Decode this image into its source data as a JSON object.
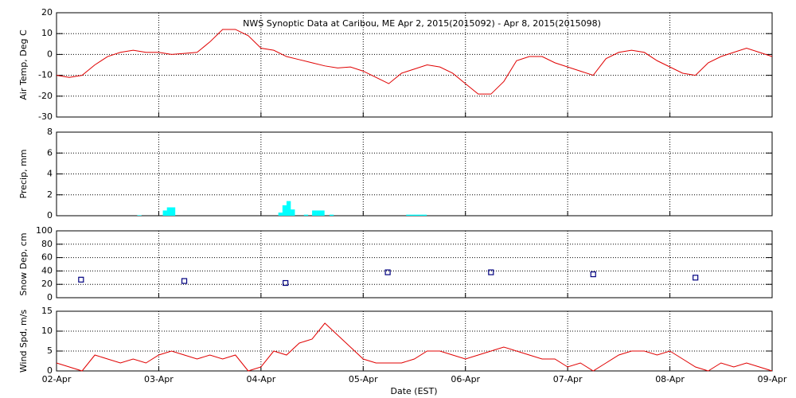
{
  "chart_data": [
    {
      "type": "line",
      "title": "NWS Synoptic Data at Caribou, ME   Apr  2, 2015(2015092) - Apr  8, 2015(2015098)",
      "ylabel": "Air Temp, Deg C",
      "xlim": [
        0,
        7
      ],
      "ylim": [
        -30,
        20
      ],
      "yticks": [
        -30,
        -20,
        -10,
        0,
        10,
        20
      ],
      "grid": true,
      "x": [
        0,
        0.125,
        0.25,
        0.375,
        0.5,
        0.625,
        0.75,
        0.875,
        1,
        1.125,
        1.25,
        1.375,
        1.5,
        1.625,
        1.75,
        1.875,
        2,
        2.125,
        2.25,
        2.375,
        2.5,
        2.625,
        2.75,
        2.875,
        3,
        3.125,
        3.25,
        3.375,
        3.5,
        3.625,
        3.75,
        3.875,
        4,
        4.125,
        4.25,
        4.375,
        4.5,
        4.625,
        4.75,
        4.875,
        5,
        5.125,
        5.25,
        5.375,
        5.5,
        5.625,
        5.75,
        5.875,
        6,
        6.125,
        6.25,
        6.375,
        6.5,
        6.625,
        6.75,
        6.875,
        7
      ],
      "series": [
        {
          "color": "#e00000",
          "values": [
            -10,
            -11,
            -10,
            -5,
            -1,
            1,
            2,
            1,
            1,
            0,
            0.5,
            1,
            6,
            12,
            12,
            9,
            3,
            2,
            -1,
            -2.5,
            -4,
            -5.5,
            -6.5,
            -6,
            -8,
            -11,
            -14,
            -9,
            -7,
            -5,
            -6,
            -9,
            -14,
            -19,
            -19,
            -13,
            -3,
            -1,
            -1,
            -4,
            -6,
            -8,
            -10,
            -2,
            1,
            2,
            1,
            -3,
            -6,
            -9,
            -10,
            -4,
            -1,
            1,
            3,
            1,
            -1
          ]
        }
      ]
    },
    {
      "type": "bar",
      "ylabel": "Precip, mm",
      "xlim": [
        0,
        7
      ],
      "ylim": [
        0,
        8
      ],
      "yticks": [
        0,
        2,
        4,
        6,
        8
      ],
      "grid": true,
      "x": [
        0.79,
        1.04,
        1.08,
        1.12,
        2.17,
        2.21,
        2.25,
        2.29,
        2.42,
        2.5,
        2.54,
        2.58,
        2.67,
        3.42,
        3.46,
        3.5,
        3.54,
        3.58
      ],
      "series": [
        {
          "color": "#00ffff",
          "values": [
            0.05,
            0.5,
            0.8,
            0.8,
            0.3,
            1.0,
            1.4,
            0.6,
            0.1,
            0.5,
            0.5,
            0.5,
            0.1,
            0.1,
            0.1,
            0.1,
            0.1,
            0.1
          ]
        }
      ]
    },
    {
      "type": "scatter",
      "ylabel": "Snow Dep, cm",
      "xlim": [
        0,
        7
      ],
      "ylim": [
        0,
        100
      ],
      "yticks": [
        0,
        20,
        40,
        60,
        80,
        100
      ],
      "grid": true,
      "x": [
        0.24,
        1.25,
        2.24,
        3.24,
        4.25,
        5.25,
        6.25
      ],
      "series": [
        {
          "color": "#000080",
          "values": [
            27,
            25,
            22,
            38,
            38,
            35,
            30
          ]
        }
      ]
    },
    {
      "type": "line",
      "ylabel": "Wind Spd, m/s",
      "xlabel": "Date (EST)",
      "xlim": [
        0,
        7
      ],
      "ylim": [
        0,
        15
      ],
      "yticks": [
        0,
        5,
        10,
        15
      ],
      "grid": true,
      "xticks": [
        {
          "value": 0,
          "label": "02-Apr"
        },
        {
          "value": 1,
          "label": "03-Apr"
        },
        {
          "value": 2,
          "label": "04-Apr"
        },
        {
          "value": 3,
          "label": "05-Apr"
        },
        {
          "value": 4,
          "label": "06-Apr"
        },
        {
          "value": 5,
          "label": "07-Apr"
        },
        {
          "value": 6,
          "label": "08-Apr"
        },
        {
          "value": 7,
          "label": "09-Apr"
        }
      ],
      "x": [
        0,
        0.125,
        0.25,
        0.375,
        0.5,
        0.625,
        0.75,
        0.875,
        1,
        1.125,
        1.25,
        1.375,
        1.5,
        1.625,
        1.75,
        1.875,
        2,
        2.125,
        2.25,
        2.375,
        2.5,
        2.625,
        2.75,
        2.875,
        3,
        3.125,
        3.25,
        3.375,
        3.5,
        3.625,
        3.75,
        3.875,
        4,
        4.125,
        4.25,
        4.375,
        4.5,
        4.625,
        4.75,
        4.875,
        5,
        5.125,
        5.25,
        5.375,
        5.5,
        5.625,
        5.75,
        5.875,
        6,
        6.125,
        6.25,
        6.375,
        6.5,
        6.625,
        6.75,
        6.875,
        7
      ],
      "series": [
        {
          "color": "#e00000",
          "values": [
            2,
            1,
            0,
            4,
            3,
            2,
            3,
            2,
            4,
            5,
            4,
            3,
            4,
            3,
            4,
            0,
            1,
            5,
            4,
            7,
            8,
            12,
            9,
            6,
            3,
            2,
            2,
            2,
            3,
            5,
            5,
            4,
            3,
            4,
            5,
            6,
            5,
            4,
            3,
            3,
            1,
            2,
            0,
            2,
            4,
            5,
            5,
            4,
            5,
            3,
            1,
            0,
            2,
            1,
            2,
            1,
            0
          ]
        }
      ]
    }
  ]
}
